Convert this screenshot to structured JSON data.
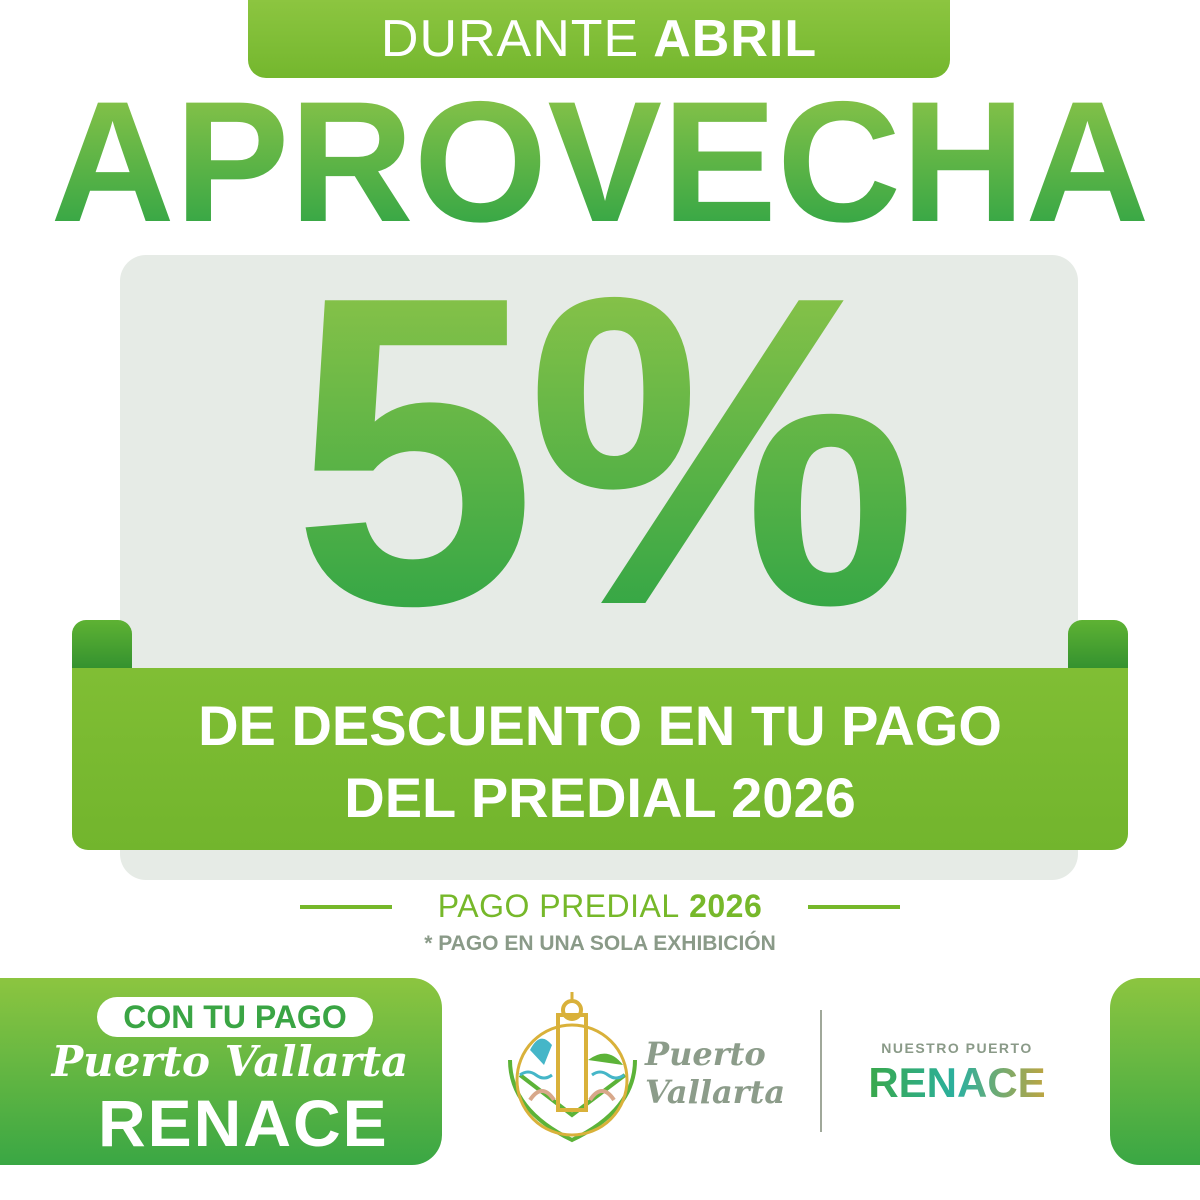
{
  "top_tab": {
    "text": "DURANTE",
    "bold": "ABRIL"
  },
  "headline": "APROVECHA",
  "discount": "5%",
  "ribbon": {
    "line1": "DE DESCUENTO EN TU PAGO",
    "line2": "DEL PREDIAL 2026"
  },
  "label": {
    "text": "PAGO PREDIAL",
    "year": "2026"
  },
  "note": "* PAGO EN UNA SOLA EXHIBICIÓN",
  "campaign": {
    "pill": "CON TU PAGO",
    "city": "Puerto Vallarta",
    "word": "RENACE"
  },
  "logo": {
    "line1": "Puerto",
    "line2": "Vallarta",
    "icon": "lighthouse-anchor-shield-icon"
  },
  "slogan": {
    "small": "NUESTRO PUERTO",
    "big": "RENACE"
  },
  "colors": {
    "green": "#76b82a",
    "dark_green": "#2ea445",
    "gray_card": "#e6ebe6",
    "gray_text": "#8a9a88"
  }
}
